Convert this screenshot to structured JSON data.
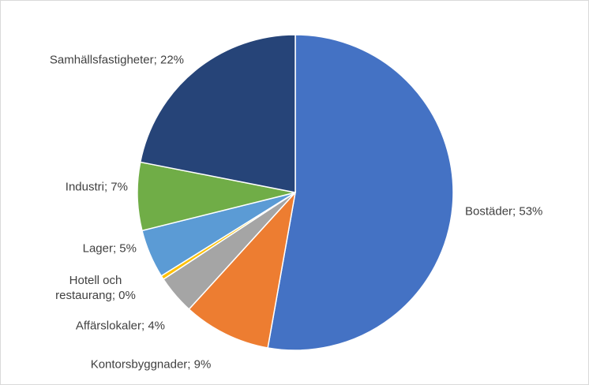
{
  "chart_data": {
    "type": "pie",
    "values": [
      53,
      9,
      4,
      0.4,
      5,
      7,
      22
    ],
    "value_labels": [
      "Bostäder; 53%",
      "Kontorsbyggnader; 9%",
      "Affärslokaler; 4%",
      "Hotell och restaurang; 0%",
      "Lager; 5%",
      "Industri; 7%",
      "Samhällsfastigheter; 22%"
    ],
    "colors": [
      "#4472c4",
      "#ed7d31",
      "#a5a5a5",
      "#ffc000",
      "#5b9bd5",
      "#70ad47",
      "#264478"
    ]
  }
}
